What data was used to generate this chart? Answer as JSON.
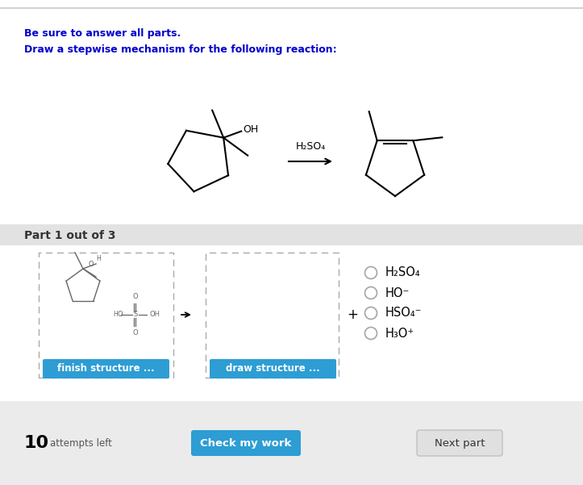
{
  "bg_color": "#ffffff",
  "header_line_color": "#c8c8c8",
  "bold_text_1": "Be sure to answer all parts.",
  "bold_text_2": "Draw a stepwise mechanism for the following reaction:",
  "reagent_label": "H₂SO₄",
  "part_label": "Part 1 out of 3",
  "part_bar_color": "#e2e2e2",
  "part_text_color": "#333333",
  "finish_btn_label": "finish structure ...",
  "draw_btn_label": "draw structure ...",
  "btn_color": "#2d9dd4",
  "btn_text_color": "#ffffff",
  "radio_options": [
    "H₂SO₄",
    "HO⁻",
    "HSO₄⁻",
    "H₃O⁺"
  ],
  "attempts_text": "10",
  "attempts_label": "attempts left",
  "check_btn_label": "Check my work",
  "next_btn_label": "Next part",
  "next_btn_color": "#e0e0e0",
  "next_btn_text_color": "#333333",
  "plus_sign": "+",
  "arrow_color": "#000000",
  "dashed_box_color": "#aaaaaa",
  "font_color_main": "#000000",
  "text_color_blue": "#0000cc",
  "bottom_bar_color": "#ebebeb"
}
